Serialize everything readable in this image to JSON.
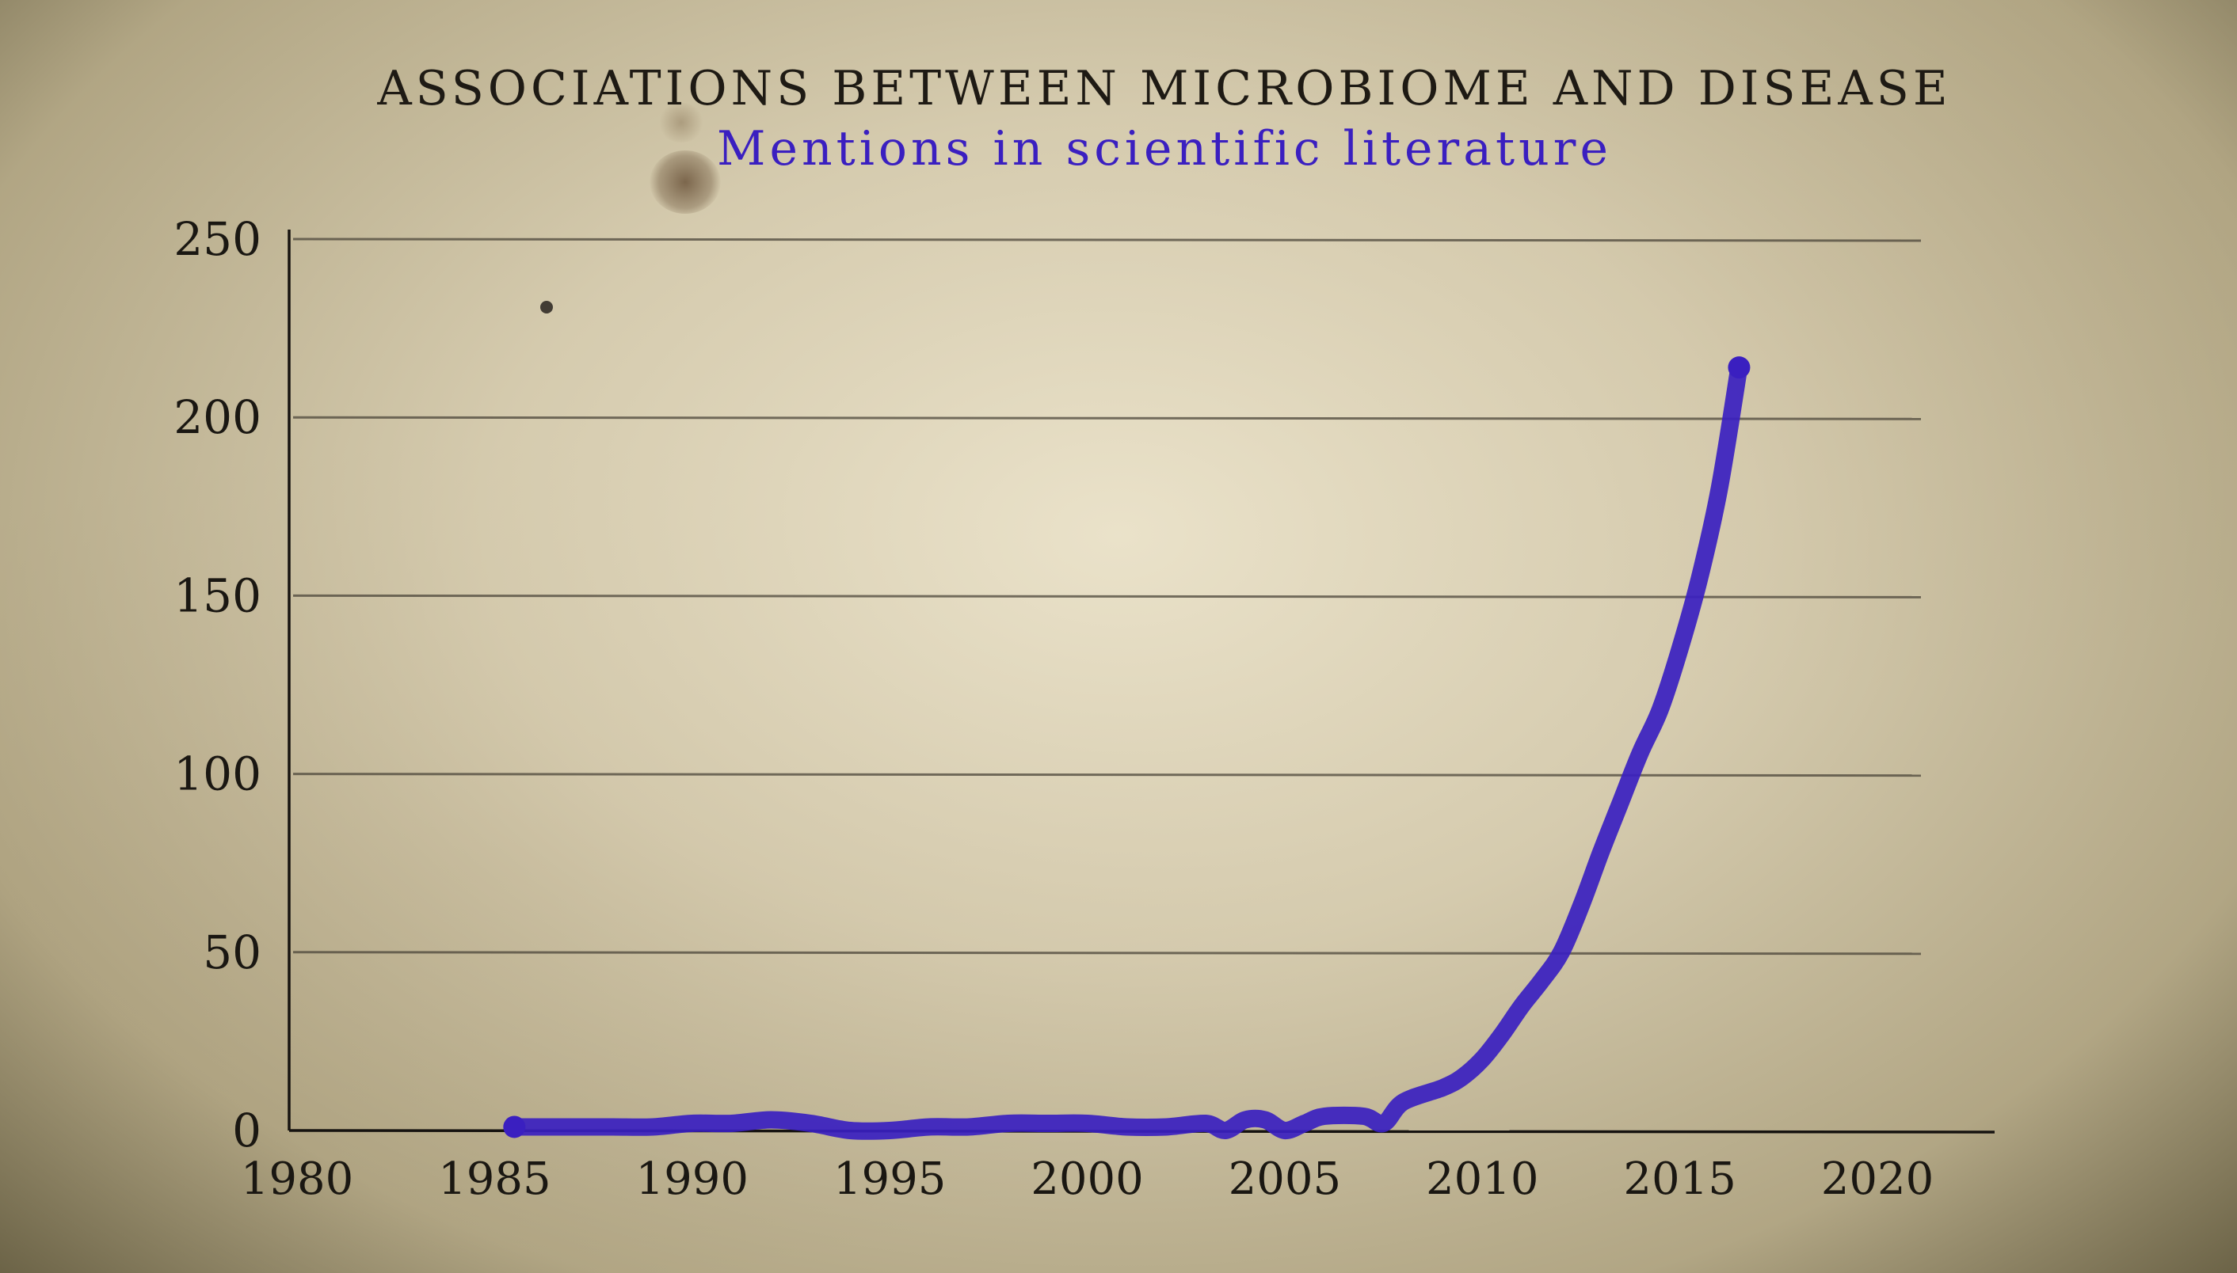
{
  "chart_data": {
    "type": "line",
    "title": "ASSOCIATIONS BETWEEN MICROBIOME AND DISEASE",
    "subtitle": "Mentions in scientific literature",
    "xlabel": "",
    "ylabel": "",
    "xlim": [
      1980,
      2022
    ],
    "ylim": [
      0,
      250
    ],
    "x_ticks": [
      "1980",
      "1985",
      "1990",
      "1995",
      "2000",
      "2005",
      "2010",
      "2015",
      "2020"
    ],
    "y_ticks": [
      "0",
      "50",
      "100",
      "150",
      "200",
      "250"
    ],
    "grid": true,
    "series": [
      {
        "color": "#3a1fc0",
        "x": [
          1985.5,
          1986,
          1987,
          1988,
          1989,
          1990,
          1991,
          1992,
          1993,
          1994,
          1995,
          1996,
          1997,
          1998,
          1999,
          2000,
          2001,
          2002,
          2003,
          2003.5,
          2004,
          2004.5,
          2005,
          2005.5,
          2006,
          2007,
          2007.5,
          2008,
          2009,
          2009.5,
          2010,
          2010.5,
          2011,
          2011.5,
          2012,
          2012.5,
          2013,
          2013.5,
          2014,
          2014.5,
          2015,
          2015.5,
          2016,
          2016.5
        ],
        "y": [
          1,
          1,
          1,
          1,
          1,
          2,
          2,
          3,
          2,
          0,
          0,
          1,
          1,
          2,
          2,
          2,
          1,
          1,
          2,
          0,
          3,
          3,
          0,
          2,
          4,
          4,
          2,
          8,
          12,
          15,
          20,
          27,
          35,
          42,
          50,
          63,
          78,
          92,
          106,
          118,
          135,
          155,
          180,
          214
        ]
      }
    ]
  }
}
